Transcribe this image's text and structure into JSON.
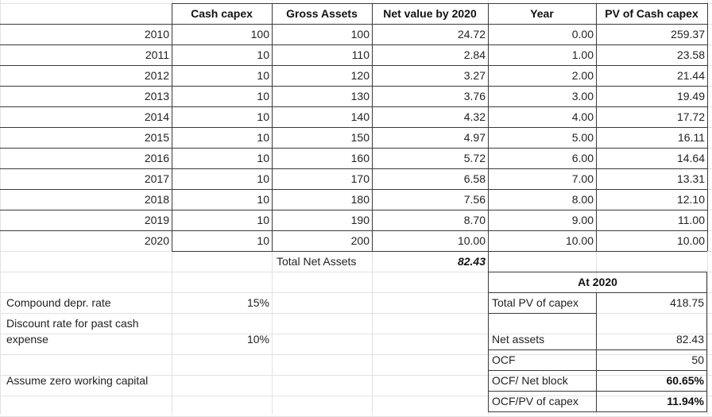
{
  "headers": [
    "Cash capex",
    "Gross Assets",
    "Net value by 2020",
    "Year",
    "PV of Cash capex"
  ],
  "rows": [
    {
      "year": "2010",
      "capex": "100",
      "gross": "100",
      "net": "24.72",
      "t": "0.00",
      "pv": "259.37"
    },
    {
      "year": "2011",
      "capex": "10",
      "gross": "110",
      "net": "2.84",
      "t": "1.00",
      "pv": "23.58"
    },
    {
      "year": "2012",
      "capex": "10",
      "gross": "120",
      "net": "3.27",
      "t": "2.00",
      "pv": "21.44"
    },
    {
      "year": "2013",
      "capex": "10",
      "gross": "130",
      "net": "3.76",
      "t": "3.00",
      "pv": "19.49"
    },
    {
      "year": "2014",
      "capex": "10",
      "gross": "140",
      "net": "4.32",
      "t": "4.00",
      "pv": "17.72"
    },
    {
      "year": "2015",
      "capex": "10",
      "gross": "150",
      "net": "4.97",
      "t": "5.00",
      "pv": "16.11"
    },
    {
      "year": "2016",
      "capex": "10",
      "gross": "160",
      "net": "5.72",
      "t": "6.00",
      "pv": "14.64"
    },
    {
      "year": "2017",
      "capex": "10",
      "gross": "170",
      "net": "6.58",
      "t": "7.00",
      "pv": "13.31"
    },
    {
      "year": "2018",
      "capex": "10",
      "gross": "180",
      "net": "7.56",
      "t": "8.00",
      "pv": "12.10"
    },
    {
      "year": "2019",
      "capex": "10",
      "gross": "190",
      "net": "8.70",
      "t": "9.00",
      "pv": "11.00"
    },
    {
      "year": "2020",
      "capex": "10",
      "gross": "200",
      "net": "10.00",
      "t": "10.00",
      "pv": "10.00"
    }
  ],
  "total": {
    "label": "Total Net Assets",
    "value": "82.43"
  },
  "assumptions": {
    "depr_label": "Compound depr. rate",
    "depr_value": "15%",
    "discount_label_1": "Discount rate for past cash",
    "discount_label_2": "expense",
    "discount_value": "10%",
    "wc_label": "Assume zero working capital"
  },
  "summary": {
    "title": "At 2020",
    "items": [
      {
        "label": "Total PV of capex",
        "value": "418.75",
        "bold": false
      },
      {
        "label": "Net assets",
        "value": "82.43",
        "bold": false
      },
      {
        "label": "OCF",
        "value": "50",
        "bold": false
      },
      {
        "label": "OCF/ Net block",
        "value": "60.65%",
        "bold": true
      },
      {
        "label": "OCF/PV of capex",
        "value": "11.94%",
        "bold": true
      }
    ]
  }
}
